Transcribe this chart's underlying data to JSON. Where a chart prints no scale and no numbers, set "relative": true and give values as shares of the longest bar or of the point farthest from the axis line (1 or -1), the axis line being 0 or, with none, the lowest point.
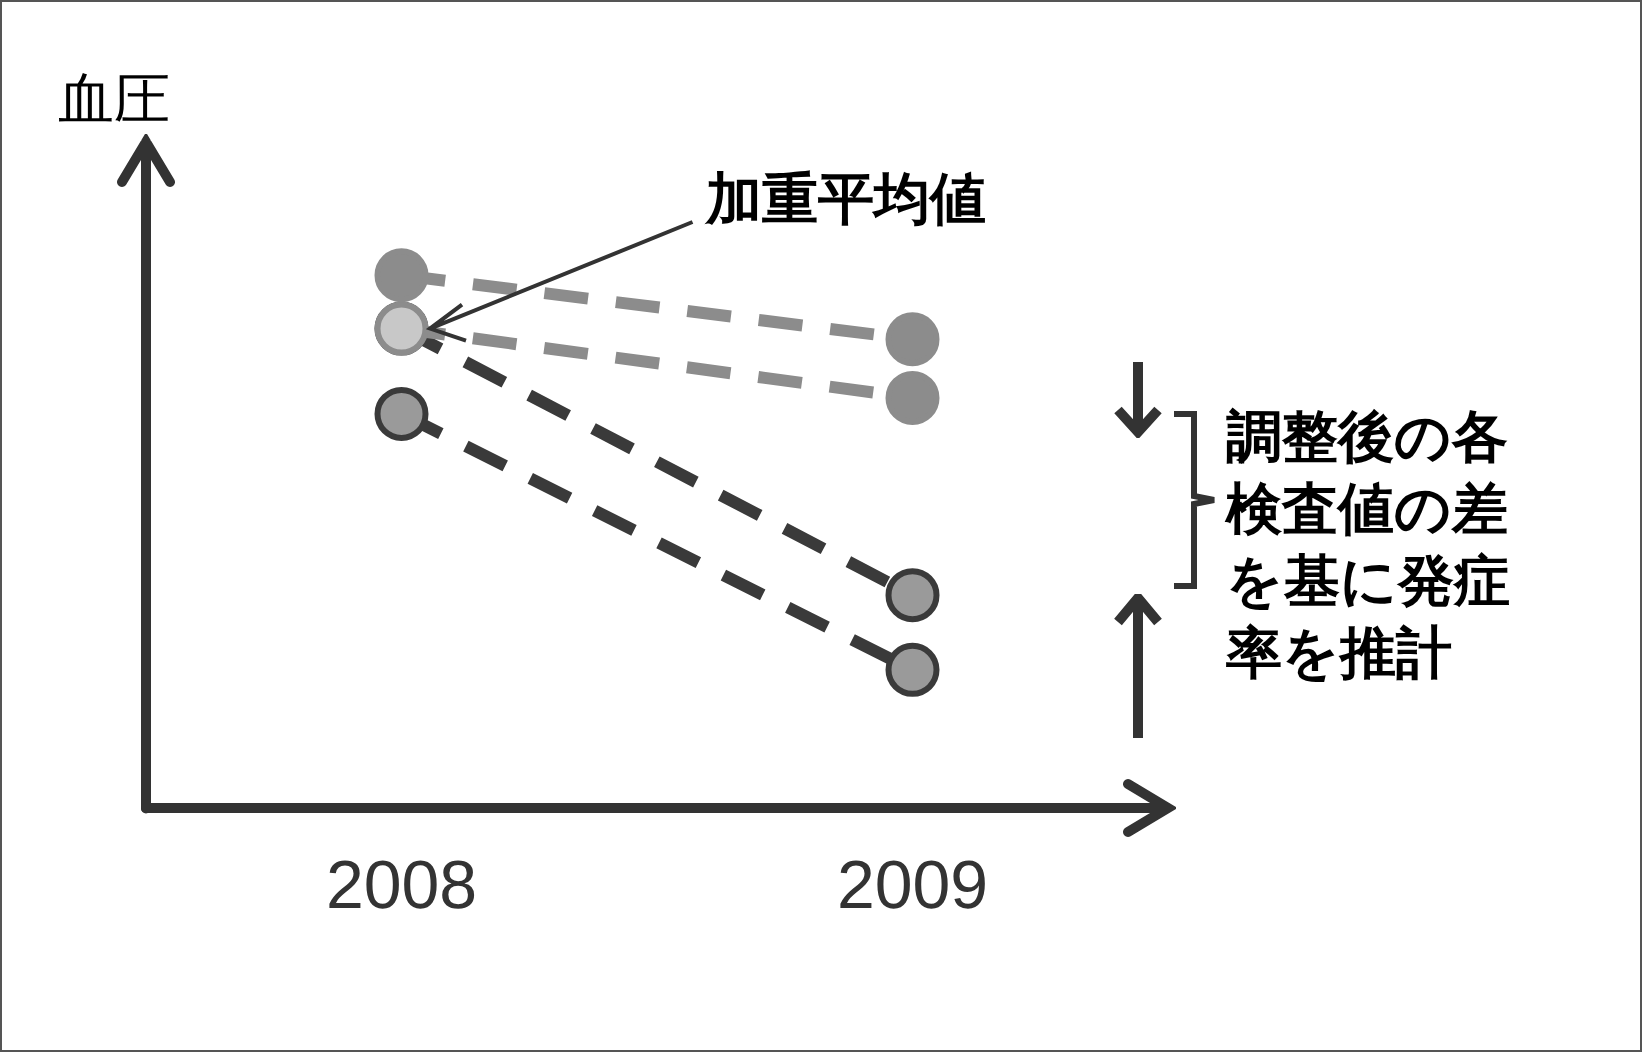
{
  "chart_data": {
    "type": "line",
    "relative": true,
    "ylabel": "血圧",
    "categories": [
      "2008",
      "2009"
    ],
    "series": [
      {
        "color": "#8c8c8c",
        "values": [
          1,
          0.88
        ]
      },
      {
        "color": "#8c8c8c",
        "colors": [
          "#c8c8c8",
          "#8c8c8c"
        ],
        "values": [
          0.9,
          0.77
        ]
      },
      {
        "color": "#3a3a3a",
        "colors": [
          "#c8c8c8",
          "#9a9a9a"
        ],
        "values": [
          0.9,
          0.4
        ]
      },
      {
        "color": "#3a3a3a",
        "colors": [
          "#9a9a9a",
          "#9a9a9a"
        ],
        "values": [
          0.74,
          0.26
        ]
      }
    ],
    "annotations": [
      "加重平均値",
      "調整後の各検査値の差を基に発症率を推計"
    ],
    "tick_labels": "x",
    "legend": false,
    "grid": false,
    "marker": "circle",
    "line_style": "dashed"
  }
}
